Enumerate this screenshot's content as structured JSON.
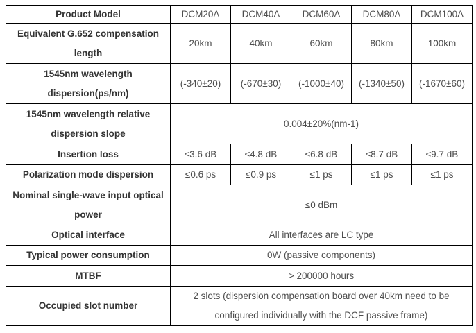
{
  "table": {
    "title_semantic": "DCM product specification table",
    "header": {
      "label": "Product Model",
      "models": [
        "DCM20A",
        "DCM40A",
        "DCM60A",
        "DCM80A",
        "DCM100A"
      ]
    },
    "rows": [
      {
        "label": "Equivalent G.652 compensation length",
        "type": "per-model",
        "values": [
          "20km",
          "40km",
          "60km",
          "80km",
          "100km"
        ]
      },
      {
        "label": "1545nm wavelength dispersion(ps/nm)",
        "type": "per-model",
        "values": [
          "(-340±20)",
          "(-670±30)",
          "(-1000±40)",
          "(-1340±50)",
          "(-1670±60)"
        ]
      },
      {
        "label": "1545nm wavelength relative dispersion slope",
        "type": "merged",
        "value": "0.004±20%(nm-1)"
      },
      {
        "label": "Insertion loss",
        "type": "per-model",
        "values": [
          "≤3.6 dB",
          "≤4.8 dB",
          "≤6.8 dB",
          "≤8.7 dB",
          "≤9.7 dB"
        ]
      },
      {
        "label": "Polarization mode dispersion",
        "type": "per-model",
        "values": [
          "≤0.6 ps",
          "≤0.9 ps",
          "≤1 ps",
          "≤1 ps",
          "≤1 ps"
        ]
      },
      {
        "label": "Nominal single-wave input optical power",
        "type": "merged",
        "value": "≤0 dBm"
      },
      {
        "label": "Optical interface",
        "type": "merged",
        "value": "All interfaces are LC type"
      },
      {
        "label": "Typical power consumption",
        "type": "merged",
        "value": "0W (passive components)"
      },
      {
        "label": "MTBF",
        "type": "merged",
        "value": "> 200000 hours"
      },
      {
        "label": "Occupied slot number",
        "type": "merged",
        "value": "2 slots (dispersion compensation board over 40km need to be configured individually with the DCF passive frame)"
      }
    ],
    "colors": {
      "border": "#000000",
      "label_text": "#333333",
      "value_text": "#4d4d4d",
      "background": "#ffffff"
    }
  }
}
